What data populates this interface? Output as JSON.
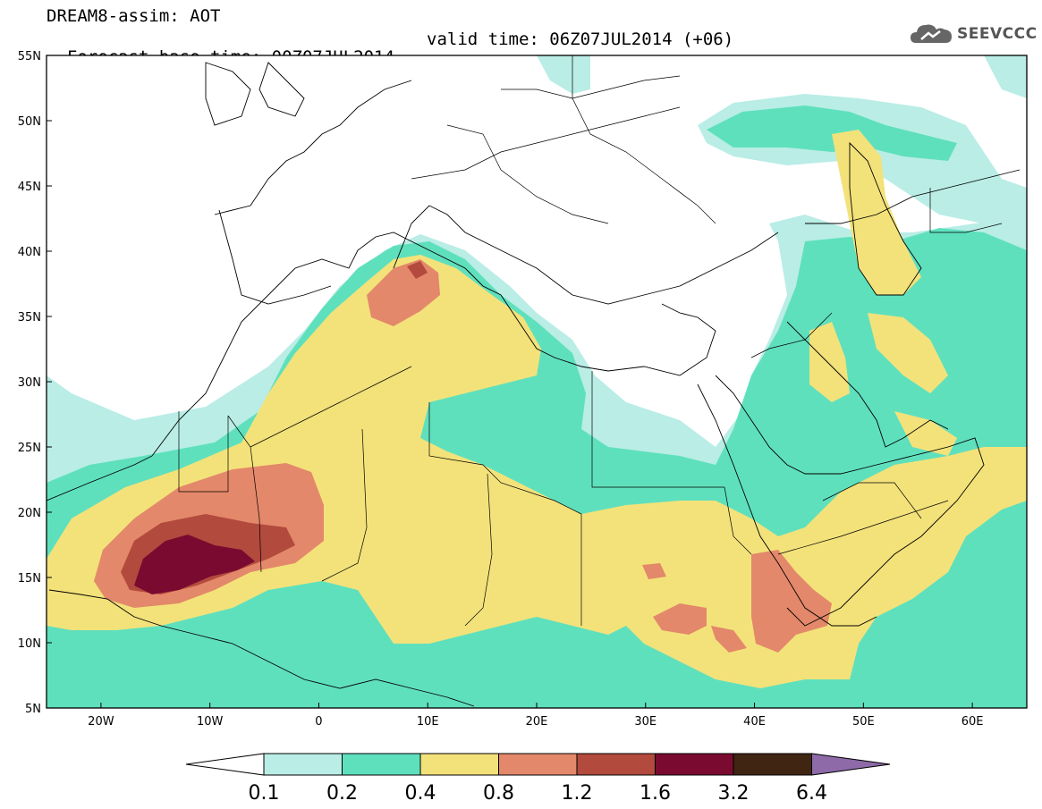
{
  "header": {
    "title": "DREAM8-assim: AOT",
    "base_time": "Forecast base time: 00Z07JUL2014",
    "valid_time": "valid time: 06Z07JUL2014 (+06)",
    "logo_text": "SEEVCCC",
    "logo_icon": "cloud-logo-icon"
  },
  "map": {
    "lat_labels": [
      "55N",
      "50N",
      "45N",
      "40N",
      "35N",
      "30N",
      "25N",
      "20N",
      "15N",
      "10N",
      "5N"
    ],
    "lon_labels": [
      "20W",
      "10W",
      "0",
      "10E",
      "20E",
      "30E",
      "40E",
      "50E",
      "60E"
    ],
    "lon_range": [
      -25,
      65
    ],
    "lat_range": [
      5,
      55
    ]
  },
  "colorbar": {
    "labels": [
      "0.1",
      "0.2",
      "0.4",
      "0.8",
      "1.2",
      "1.6",
      "3.2",
      "6.4"
    ],
    "colors": [
      "#b9ede6",
      "#5fe0bd",
      "#f3e27a",
      "#e3886a",
      "#b24a3d",
      "#7a0a30",
      "#3f2512",
      "#8e6aa8"
    ],
    "under_color": "#ffffff"
  }
}
